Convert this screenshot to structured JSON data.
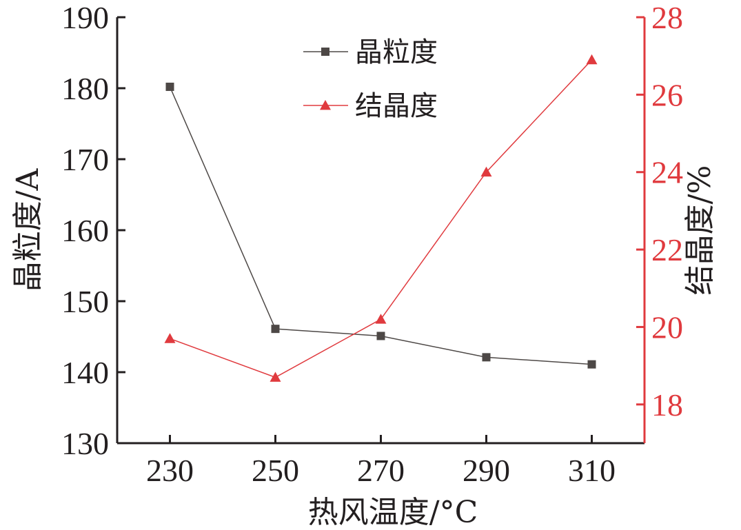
{
  "chart_data": {
    "type": "line",
    "title": "",
    "xlabel": "热风温度/°C",
    "ylabel": "晶粒度/A",
    "y2label": "结晶度/%",
    "x": [
      230,
      250,
      270,
      290,
      310
    ],
    "xticks": [
      "230",
      "250",
      "270",
      "290",
      "310"
    ],
    "xlim": [
      220,
      320
    ],
    "ylim": [
      130,
      190
    ],
    "y2lim": [
      17,
      28
    ],
    "yticks": [
      "130",
      "140",
      "150",
      "160",
      "170",
      "180",
      "190"
    ],
    "y2ticks": [
      "18",
      "20",
      "22",
      "24",
      "26",
      "28"
    ],
    "grid": false,
    "legend_position": "top-center",
    "series": [
      {
        "name": "晶粒度",
        "axis": "left",
        "marker": "square",
        "color": "#4d4846",
        "values": [
          180.2,
          146.1,
          145.1,
          142.1,
          141.1
        ]
      },
      {
        "name": "结晶度",
        "axis": "right",
        "marker": "triangle",
        "color": "#e03a3e",
        "values": [
          19.7,
          18.7,
          20.2,
          24.0,
          26.9
        ]
      }
    ]
  }
}
